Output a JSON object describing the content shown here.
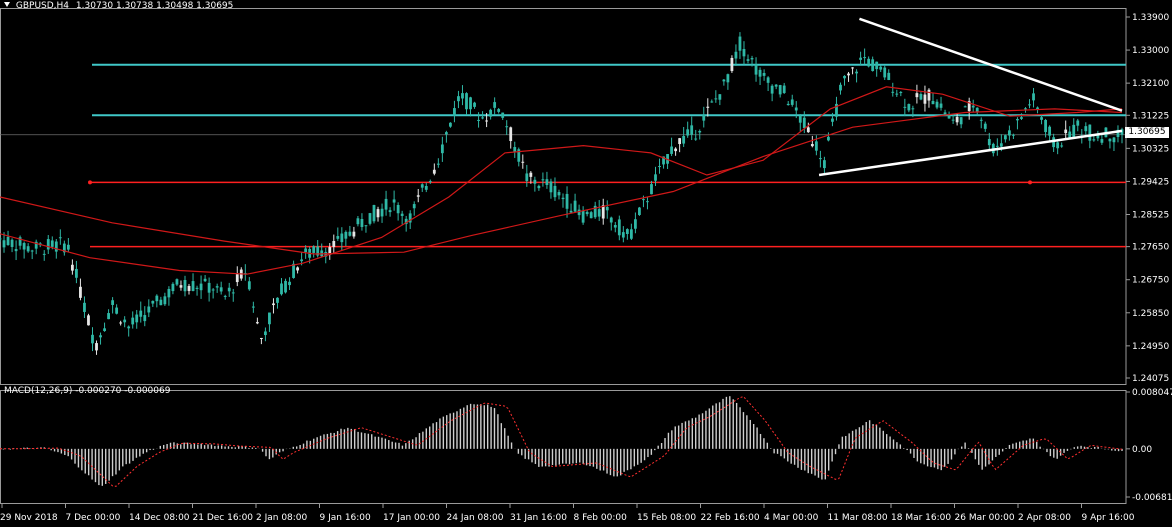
{
  "window": {
    "symbol_label": "GBPUSD,H4",
    "ohlc_label": "1.30730 1.30738 1.30498 1.30695",
    "current_price_label": "1.30695"
  },
  "colors": {
    "background": "#000000",
    "candle": "#2fb8a6",
    "candle_white": "#e6e6e6",
    "support_resistance": "#40c8c8",
    "red_line": "#ff2020",
    "ma": "#d01818",
    "trendline": "#ffffff",
    "macd_hist": "#cfcfcf",
    "macd_signal": "#ff3030"
  },
  "macd": {
    "label": "MACD(12,26,9) -0.000270 -0.000069"
  },
  "chart_data": [
    {
      "type": "candlestick",
      "title": "GBPUSD,H4",
      "y_ticks": [
        "1.33900",
        "1.33000",
        "1.32100",
        "1.31225",
        "1.30325",
        "1.29425",
        "1.28525",
        "1.27650",
        "1.26750",
        "1.25850",
        "1.24950",
        "1.24075"
      ],
      "ylim": [
        1.24075,
        1.339
      ],
      "x_ticks": [
        "29 Nov 2018",
        "7 Dec 00:00",
        "14 Dec 08:00",
        "21 Dec 16:00",
        "2 Jan 08:00",
        "9 Jan 16:00",
        "17 Jan 00:00",
        "24 Jan 08:00",
        "31 Jan 16:00",
        "8 Feb 00:00",
        "15 Feb 08:00",
        "22 Feb 16:00",
        "4 Mar 00:00",
        "11 Mar 08:00",
        "18 Mar 16:00",
        "26 Mar 00:00",
        "2 Apr 08:00",
        "9 Apr 16:00"
      ],
      "price_path": [
        [
          0,
          1.2785
        ],
        [
          0.03,
          1.276
        ],
        [
          0.06,
          1.2772
        ],
        [
          0.085,
          1.2495
        ],
        [
          0.1,
          1.261
        ],
        [
          0.115,
          1.2545
        ],
        [
          0.14,
          1.261
        ],
        [
          0.16,
          1.2665
        ],
        [
          0.19,
          1.2655
        ],
        [
          0.2,
          1.2625
        ],
        [
          0.22,
          1.2705
        ],
        [
          0.232,
          1.251
        ],
        [
          0.25,
          1.264
        ],
        [
          0.27,
          1.274
        ],
        [
          0.3,
          1.277
        ],
        [
          0.33,
          1.285
        ],
        [
          0.35,
          1.2885
        ],
        [
          0.365,
          1.284
        ],
        [
          0.39,
          1.3
        ],
        [
          0.41,
          1.318
        ],
        [
          0.43,
          1.3115
        ],
        [
          0.445,
          1.315
        ],
        [
          0.47,
          1.295
        ],
        [
          0.49,
          1.293
        ],
        [
          0.52,
          1.285
        ],
        [
          0.54,
          1.286
        ],
        [
          0.56,
          1.279
        ],
        [
          0.58,
          1.292
        ],
        [
          0.6,
          1.304
        ],
        [
          0.62,
          1.308
        ],
        [
          0.645,
          1.32
        ],
        [
          0.66,
          1.332
        ],
        [
          0.68,
          1.322
        ],
        [
          0.7,
          1.318
        ],
        [
          0.72,
          1.308
        ],
        [
          0.735,
          1.3
        ],
        [
          0.75,
          1.32
        ],
        [
          0.77,
          1.328
        ],
        [
          0.79,
          1.323
        ],
        [
          0.81,
          1.315
        ],
        [
          0.83,
          1.318
        ],
        [
          0.85,
          1.31
        ],
        [
          0.87,
          1.316
        ],
        [
          0.885,
          1.303
        ],
        [
          0.905,
          1.309
        ],
        [
          0.92,
          1.317
        ],
        [
          0.94,
          1.304
        ],
        [
          0.96,
          1.309
        ],
        [
          0.975,
          1.307
        ],
        [
          1,
          1.30695
        ]
      ],
      "moving_averages": [
        {
          "name": "",
          "points": [
            [
              0,
              1.29
            ],
            [
              0.1,
              1.283
            ],
            [
              0.2,
              1.278
            ],
            [
              0.28,
              1.2745
            ],
            [
              0.36,
              1.275
            ],
            [
              0.42,
              1.2795
            ],
            [
              0.5,
              1.285
            ],
            [
              0.6,
              1.2915
            ],
            [
              0.68,
              1.301
            ],
            [
              0.76,
              1.309
            ],
            [
              0.86,
              1.313
            ],
            [
              0.94,
              1.314
            ],
            [
              1,
              1.313
            ]
          ]
        },
        {
          "name": "",
          "points": [
            [
              0,
              1.28
            ],
            [
              0.08,
              1.2735
            ],
            [
              0.16,
              1.27
            ],
            [
              0.22,
              1.269
            ],
            [
              0.27,
              1.272
            ],
            [
              0.34,
              1.279
            ],
            [
              0.4,
              1.29
            ],
            [
              0.45,
              1.302
            ],
            [
              0.52,
              1.304
            ],
            [
              0.58,
              1.302
            ],
            [
              0.63,
              1.296
            ],
            [
              0.68,
              1.3
            ],
            [
              0.74,
              1.314
            ],
            [
              0.79,
              1.32
            ],
            [
              0.84,
              1.318
            ],
            [
              0.9,
              1.312
            ],
            [
              0.96,
              1.313
            ],
            [
              1,
              1.314
            ]
          ]
        }
      ],
      "horizontal_levels": [
        {
          "price": 1.326,
          "color": "support_resistance"
        },
        {
          "price": 1.31225,
          "color": "support_resistance"
        },
        {
          "price": 1.294,
          "color": "red_line"
        },
        {
          "price": 1.2765,
          "color": "red_line"
        }
      ],
      "triangle": {
        "upper": [
          [
            0.766,
            1.3385
          ],
          [
            1.0,
            1.3135
          ]
        ],
        "lower": [
          [
            0.73,
            1.296
          ],
          [
            1.0,
            1.308
          ]
        ]
      }
    },
    {
      "type": "histogram",
      "title": "MACD(12,26,9) -0.000270 -0.000069",
      "y_ticks": [
        "0.008047",
        "0.00",
        "-0.006819"
      ],
      "ylim": [
        -0.006819,
        0.008047
      ],
      "hist_path": [
        [
          0,
          0
        ],
        [
          0.04,
          0.0001
        ],
        [
          0.06,
          -0.001
        ],
        [
          0.09,
          -0.0055
        ],
        [
          0.11,
          -0.0025
        ],
        [
          0.13,
          -0.0005
        ],
        [
          0.15,
          0.0008
        ],
        [
          0.18,
          0.0007
        ],
        [
          0.2,
          0.0004
        ],
        [
          0.23,
          0.0002
        ],
        [
          0.24,
          -0.0015
        ],
        [
          0.25,
          -0.0005
        ],
        [
          0.28,
          0.0015
        ],
        [
          0.31,
          0.003
        ],
        [
          0.33,
          0.002
        ],
        [
          0.36,
          0.0005
        ],
        [
          0.39,
          0.004
        ],
        [
          0.42,
          0.0065
        ],
        [
          0.44,
          0.006
        ],
        [
          0.46,
          -0.0005
        ],
        [
          0.48,
          -0.0025
        ],
        [
          0.52,
          -0.002
        ],
        [
          0.55,
          -0.004
        ],
        [
          0.58,
          -0.001
        ],
        [
          0.6,
          0.003
        ],
        [
          0.62,
          0.0045
        ],
        [
          0.65,
          0.0075
        ],
        [
          0.67,
          0.004
        ],
        [
          0.69,
          -0.0005
        ],
        [
          0.71,
          -0.0025
        ],
        [
          0.735,
          -0.0045
        ],
        [
          0.75,
          0.0015
        ],
        [
          0.775,
          0.004
        ],
        [
          0.8,
          0.001
        ],
        [
          0.82,
          -0.002
        ],
        [
          0.84,
          -0.003
        ],
        [
          0.86,
          0.001
        ],
        [
          0.875,
          -0.003
        ],
        [
          0.9,
          0.0005
        ],
        [
          0.92,
          0.0015
        ],
        [
          0.94,
          -0.0015
        ],
        [
          0.96,
          0.0005
        ],
        [
          1,
          -0.0003
        ]
      ]
    }
  ]
}
